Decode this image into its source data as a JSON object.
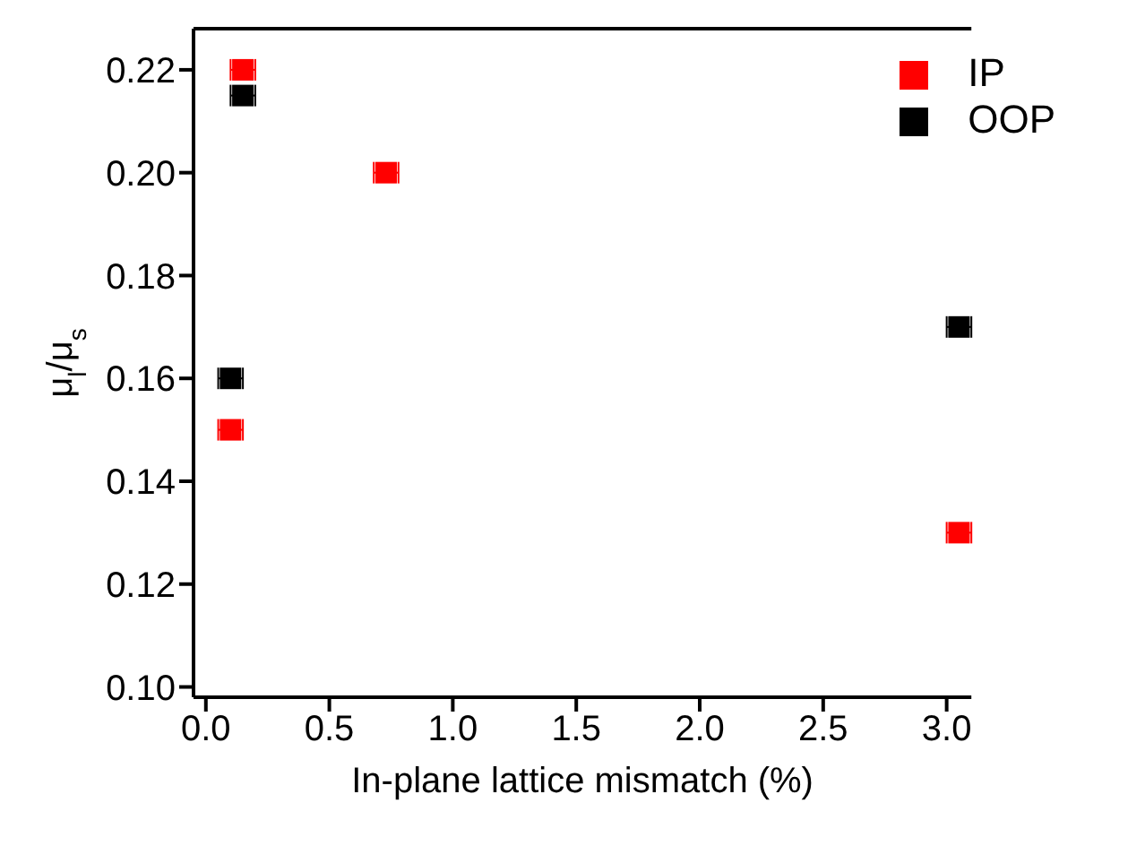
{
  "chart_data": {
    "type": "scatter",
    "xlabel": "In-plane lattice mismatch (%)",
    "ylabel": "μ$_{l}$/μ$_{s}$",
    "xlim": [
      -0.05,
      3.1
    ],
    "xticks": [
      {
        "value": 0,
        "label": "0.0"
      },
      0.5,
      {
        "value": 1,
        "label": "1.0"
      },
      1.5,
      {
        "value": 2,
        "label": "2.0"
      },
      2.5,
      {
        "value": 3,
        "label": "3.0"
      }
    ],
    "ylim": [
      0.098,
      0.228
    ],
    "yticks": [
      {
        "value": 0.1,
        "label": "0.10"
      },
      0.12,
      0.14,
      0.16,
      0.18,
      {
        "value": 0.2,
        "label": "0.20"
      },
      0.22
    ],
    "grid": false,
    "legend": "top right",
    "marker": "square",
    "series": [
      {
        "name": "IP",
        "color": "#ff0000",
        "x": [
          0.15,
          0.73,
          0.1,
          3.05
        ],
        "values": [
          0.22,
          0.2,
          0.15,
          0.13
        ],
        "xerrors": [
          0.05,
          0.05,
          0.05,
          0.05
        ]
      },
      {
        "name": "OOP",
        "color": "#000000",
        "x": [
          0.15,
          0.1,
          3.05
        ],
        "values": [
          0.215,
          0.16,
          0.17
        ],
        "xerrors": [
          0.05,
          0.05,
          0.05
        ]
      }
    ]
  }
}
